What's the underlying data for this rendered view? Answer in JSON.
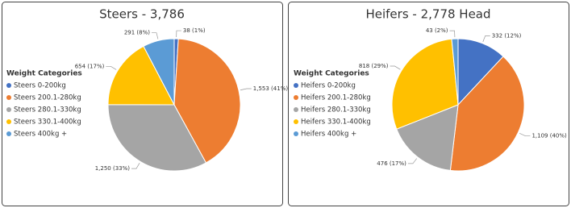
{
  "chart_data": [
    {
      "type": "pie",
      "title": "Steers - 3,786",
      "legend_title": "Weight Categories",
      "categories": [
        "Steers 0-200kg",
        "Steers 200.1-280kg",
        "Steers 280.1-330kg",
        "Steers 330.1-400kg",
        "Steers 400kg +"
      ],
      "values": [
        38,
        1553,
        1250,
        654,
        291
      ],
      "value_labels": [
        "38 (1%)",
        "1,553 (41%)",
        "1,250 (33%)",
        "654 (17%)",
        "291 (8%)"
      ],
      "colors": [
        "#4472c4",
        "#ed7d31",
        "#a5a5a5",
        "#ffc000",
        "#5b9bd5"
      ]
    },
    {
      "type": "pie",
      "title": "Heifers - 2,778 Head",
      "legend_title": "Weight Categories",
      "categories": [
        "Heifers 0-200kg",
        "Heifers 200.1-280kg",
        "Heifers 280.1-330kg",
        "Heifers 330.1-400kg",
        "Heifers 400kg +"
      ],
      "values": [
        332,
        1109,
        476,
        818,
        43
      ],
      "value_labels": [
        "332 (12%)",
        "1,109 (40%)",
        "476 (17%)",
        "818 (29%)",
        "43 (2%)"
      ],
      "colors": [
        "#4472c4",
        "#ed7d31",
        "#a5a5a5",
        "#ffc000",
        "#5b9bd5"
      ]
    }
  ]
}
